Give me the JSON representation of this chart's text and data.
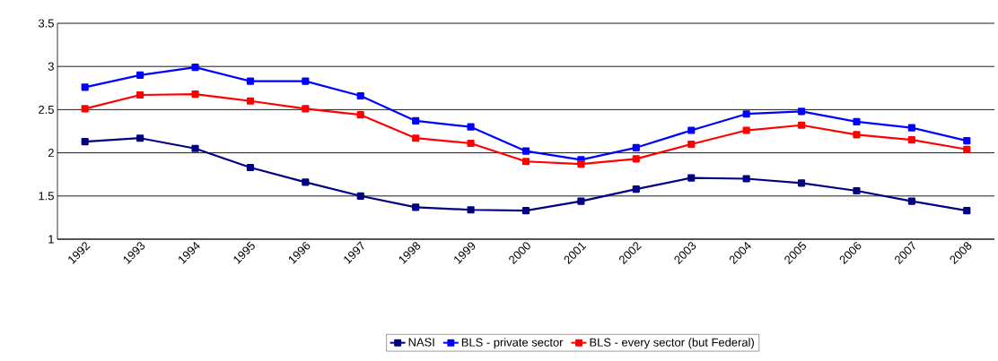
{
  "chart_data": {
    "type": "line",
    "categories": [
      "1992",
      "1993",
      "1994",
      "1995",
      "1996",
      "1997",
      "1998",
      "1999",
      "2000",
      "2001",
      "2002",
      "2003",
      "2004",
      "2005",
      "2006",
      "2007",
      "2008"
    ],
    "series": [
      {
        "name": "NASI",
        "color": "#000080",
        "values": [
          2.13,
          2.17,
          2.05,
          1.83,
          1.66,
          1.5,
          1.37,
          1.34,
          1.33,
          1.44,
          1.58,
          1.71,
          1.7,
          1.65,
          1.56,
          1.44,
          1.33
        ]
      },
      {
        "name": "BLS - private sector",
        "color": "#0000ff",
        "values": [
          2.76,
          2.9,
          2.99,
          2.83,
          2.83,
          2.66,
          2.37,
          2.3,
          2.02,
          1.92,
          2.06,
          2.26,
          2.45,
          2.48,
          2.36,
          2.29,
          2.14
        ]
      },
      {
        "name": "BLS - every sector (but Federal)",
        "color": "#ff0000",
        "values": [
          2.51,
          2.67,
          2.68,
          2.6,
          2.51,
          2.44,
          2.17,
          2.11,
          1.9,
          1.87,
          1.93,
          2.1,
          2.26,
          2.32,
          2.21,
          2.15,
          2.04
        ]
      }
    ],
    "ylim": [
      1,
      3.5
    ],
    "yticks": [
      1,
      1.5,
      2,
      2.5,
      3,
      3.5
    ],
    "grid": "y",
    "legend": "bottom",
    "marker": "square",
    "line_style": "solid"
  }
}
